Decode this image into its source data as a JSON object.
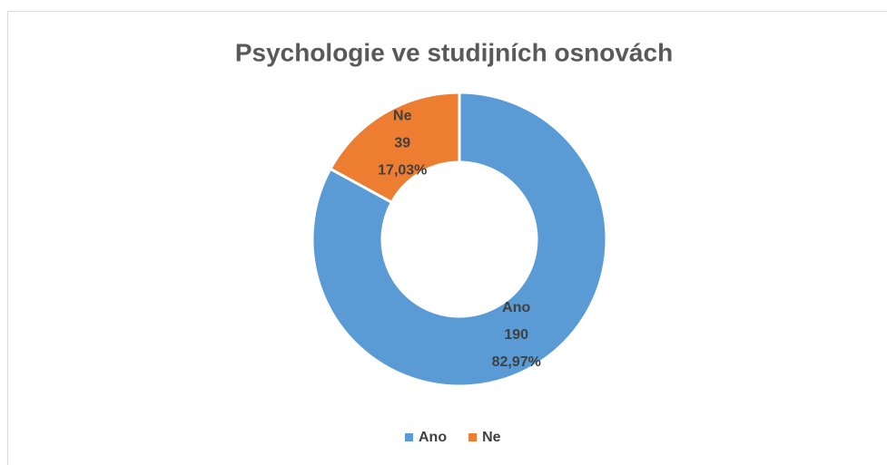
{
  "chart_data": {
    "type": "donut",
    "title": "Psychologie ve studijních osnovách",
    "categories": [
      "Ano",
      "Ne"
    ],
    "values": [
      190,
      39
    ],
    "percent_labels": [
      "82,97%",
      "17,03%"
    ],
    "colors": [
      "#5b9bd5",
      "#ed7d31"
    ],
    "legend": "bottom"
  }
}
